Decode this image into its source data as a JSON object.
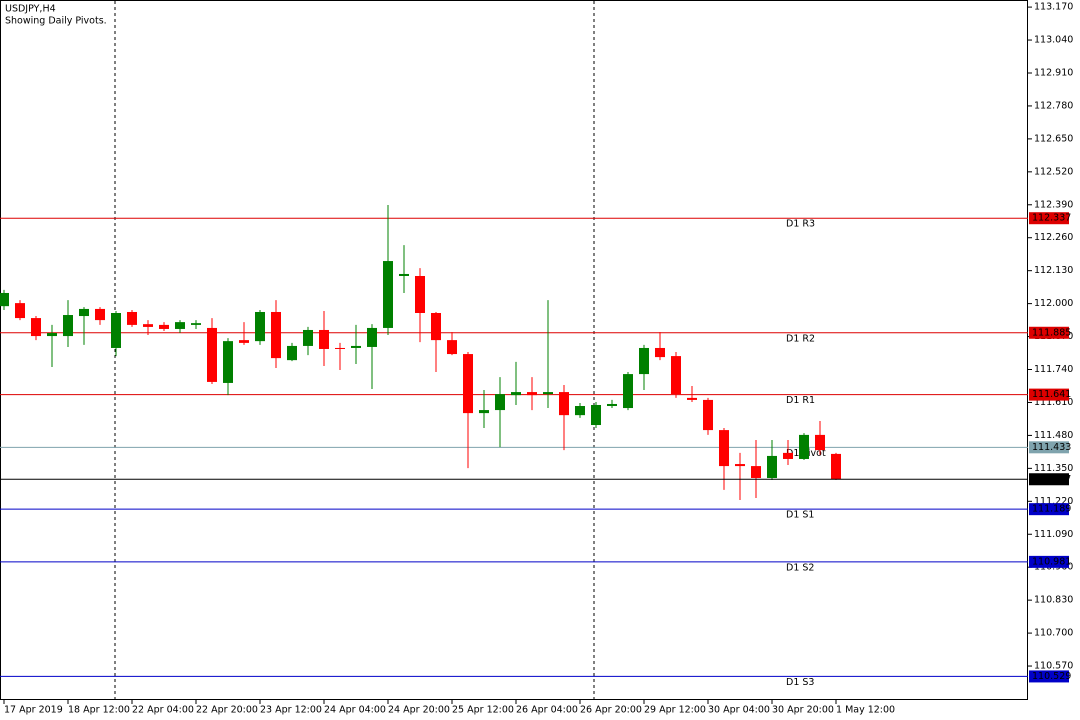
{
  "chart_data": {
    "type": "candlestick",
    "title": "USDJPY,H4",
    "subtitle": "Showing Daily Pivots.",
    "categories": [
      "17 Apr 2019",
      null,
      null,
      null,
      "18 Apr 12:00",
      null,
      null,
      null,
      "22 Apr 04:00",
      null,
      null,
      null,
      "22 Apr 20:00",
      null,
      null,
      null,
      "23 Apr 12:00",
      null,
      null,
      null,
      "24 Apr 04:00",
      null,
      null,
      null,
      "24 Apr 20:00",
      null,
      null,
      null,
      "25 Apr 12:00",
      null,
      null,
      null,
      "26 Apr 04:00",
      null,
      null,
      null,
      "26 Apr 20:00",
      null,
      null,
      null,
      "29 Apr 12:00",
      null,
      null,
      null,
      "30 Apr 04:00",
      null,
      null,
      null,
      "30 Apr 20:00",
      null,
      null,
      null,
      "1 May 12:00"
    ],
    "open": [
      111.99,
      112.002,
      111.943,
      111.872,
      111.872,
      111.951,
      111.979,
      111.825,
      111.967,
      111.919,
      111.916,
      111.9,
      111.916,
      111.904,
      111.687,
      111.856,
      111.852,
      111.967,
      111.777,
      111.833,
      111.896,
      111.825,
      111.825,
      111.829,
      111.904,
      112.109,
      112.109,
      111.963,
      111.856,
      111.801,
      111.568,
      111.58,
      111.639,
      111.651,
      111.643,
      111.651,
      111.56,
      111.521,
      111.596,
      111.588,
      111.722,
      111.825,
      111.793,
      111.628,
      111.62,
      111.501,
      111.367,
      111.359,
      111.312,
      111.411,
      111.387,
      111.482,
      111.407
    ],
    "high": [
      112.054,
      112.014,
      111.951,
      111.916,
      112.014,
      111.986,
      111.986,
      111.971,
      111.975,
      111.935,
      111.927,
      111.935,
      111.935,
      111.943,
      111.864,
      111.927,
      111.975,
      112.014,
      111.845,
      111.908,
      111.971,
      111.845,
      111.916,
      111.919,
      112.389,
      112.231,
      112.14,
      111.967,
      111.888,
      111.809,
      111.659,
      111.71,
      111.77,
      111.71,
      112.014,
      111.679,
      111.608,
      111.612,
      111.62,
      111.73,
      111.837,
      111.888,
      111.809,
      111.675,
      111.628,
      111.509,
      111.411,
      111.462,
      111.462,
      111.462,
      111.489,
      111.537,
      111.411
    ],
    "low": [
      111.975,
      111.935,
      111.856,
      111.75,
      111.829,
      111.837,
      111.916,
      111.793,
      111.908,
      111.876,
      111.892,
      111.884,
      111.9,
      111.683,
      111.639,
      111.837,
      111.837,
      111.746,
      111.773,
      111.797,
      111.754,
      111.738,
      111.762,
      111.663,
      111.876,
      112.042,
      111.848,
      111.73,
      111.797,
      111.351,
      111.509,
      111.434,
      111.6,
      111.58,
      111.588,
      111.422,
      111.549,
      111.509,
      111.588,
      111.58,
      111.659,
      111.777,
      111.628,
      111.612,
      111.482,
      111.265,
      111.225,
      111.233,
      111.304,
      111.363,
      111.383,
      111.403,
      111.304
    ],
    "close": [
      112.042,
      111.943,
      111.872,
      111.884,
      111.955,
      111.979,
      111.935,
      111.963,
      111.916,
      111.908,
      111.9,
      111.927,
      111.923,
      111.691,
      111.852,
      111.845,
      111.967,
      111.785,
      111.833,
      111.896,
      111.821,
      111.821,
      111.833,
      111.904,
      112.168,
      112.117,
      111.963,
      111.856,
      111.801,
      111.568,
      111.58,
      111.643,
      111.651,
      111.639,
      111.651,
      111.56,
      111.596,
      111.6,
      111.604,
      111.722,
      111.825,
      111.789,
      111.643,
      111.62,
      111.501,
      111.359,
      111.359,
      111.312,
      111.399,
      111.387,
      111.482,
      111.422,
      111.307
    ],
    "up_color": "#008000",
    "down_color": "#ff0000",
    "ylim": [
      110.436,
      113.198
    ],
    "yticks": [
      {
        "value": 113.17,
        "label": "113.170"
      },
      {
        "value": 113.04,
        "label": "113.040"
      },
      {
        "value": 112.91,
        "label": "112.910"
      },
      {
        "value": 112.78,
        "label": "112.780"
      },
      {
        "value": 112.65,
        "label": "112.650"
      },
      {
        "value": 112.52,
        "label": "112.520"
      },
      {
        "value": 112.39,
        "label": "112.390"
      },
      {
        "value": 112.26,
        "label": "112.260"
      },
      {
        "value": 112.13,
        "label": "112.130"
      },
      {
        "value": 112.0,
        "label": "112.000"
      },
      {
        "value": 111.87,
        "label": "111.870"
      },
      {
        "value": 111.74,
        "label": "111.740"
      },
      {
        "value": 111.61,
        "label": "111.610"
      },
      {
        "value": 111.48,
        "label": "111.480"
      },
      {
        "value": 111.35,
        "label": "111.350"
      },
      {
        "value": 111.22,
        "label": "111.220"
      },
      {
        "value": 111.09,
        "label": "111.090"
      },
      {
        "value": 110.96,
        "label": "110.960"
      },
      {
        "value": 110.83,
        "label": "110.830"
      },
      {
        "value": 110.7,
        "label": "110.700"
      },
      {
        "value": 110.57,
        "label": "110.570"
      }
    ],
    "levels": [
      {
        "name": "D1 R3",
        "value": 112.337,
        "color": "#dd0000"
      },
      {
        "name": "D1 R2",
        "value": 111.885,
        "color": "#dd0000"
      },
      {
        "name": "D1 R1",
        "value": 111.641,
        "color": "#dd0000"
      },
      {
        "name": "D1 Pivot",
        "value": 111.433,
        "color": "#7fa3ad"
      },
      {
        "name": "D1 S1",
        "value": 111.189,
        "color": "#0000c8"
      },
      {
        "name": "D1 S2",
        "value": 110.981,
        "color": "#0000c8"
      },
      {
        "name": "D1 S3",
        "value": 110.529,
        "color": "#0000c8"
      }
    ],
    "current_price": {
      "value": 111.307,
      "color": "#000000"
    }
  }
}
